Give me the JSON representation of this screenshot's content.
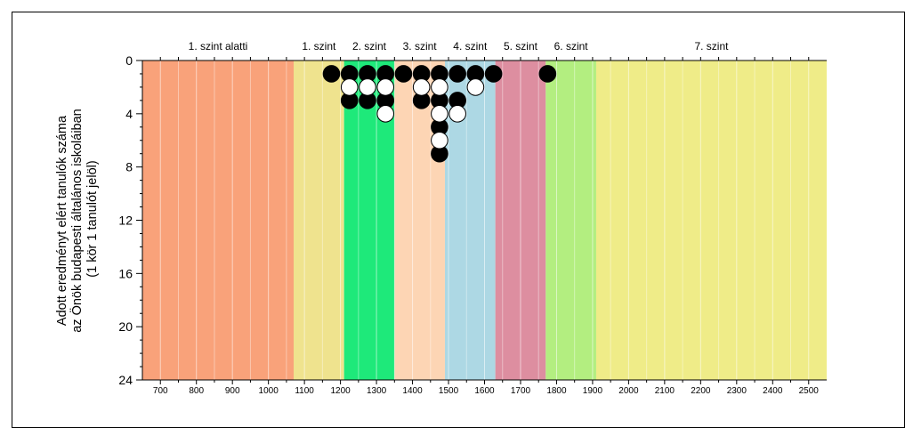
{
  "chart_data": {
    "type": "scatter",
    "title": "",
    "ylabel_lines": [
      "Adott eredményt elért tanulók száma",
      "az Önök budapesti általános iskoláiban",
      "(1 kör 1 tanulót jelöl)"
    ],
    "xlabel": "",
    "xlim": [
      650,
      2550
    ],
    "ylim": [
      0,
      24
    ],
    "y_inverted": true,
    "x_ticks": [
      700,
      800,
      900,
      1000,
      1100,
      1200,
      1300,
      1400,
      1500,
      1600,
      1700,
      1800,
      1900,
      2000,
      2100,
      2200,
      2300,
      2400,
      2500
    ],
    "y_ticks": [
      0,
      4,
      8,
      12,
      16,
      20,
      24
    ],
    "bands": [
      {
        "label": "1. szint alatti",
        "from": 650,
        "to": 1070,
        "color": "#f9a27a"
      },
      {
        "label": "1. szint",
        "from": 1070,
        "to": 1210,
        "color": "#efe38e"
      },
      {
        "label": "2. szint",
        "from": 1210,
        "to": 1350,
        "color": "#1ee97a"
      },
      {
        "label": "3. szint",
        "from": 1350,
        "to": 1490,
        "color": "#fdd5b4"
      },
      {
        "label": "4. szint",
        "from": 1490,
        "to": 1630,
        "color": "#add8e4"
      },
      {
        "label": "5. szint",
        "from": 1630,
        "to": 1770,
        "color": "#dd8ea0"
      },
      {
        "label": "6. szint",
        "from": 1770,
        "to": 1910,
        "color": "#b3ee80"
      },
      {
        "label": "7. szint",
        "from": 1910,
        "to": 2550,
        "color": "#efec88"
      }
    ],
    "series": [
      {
        "fill": "#000000",
        "points": [
          {
            "x": 1175,
            "y": 1
          },
          {
            "x": 1225,
            "y": 1
          },
          {
            "x": 1275,
            "y": 1
          },
          {
            "x": 1325,
            "y": 1
          },
          {
            "x": 1375,
            "y": 1
          },
          {
            "x": 1425,
            "y": 1
          },
          {
            "x": 1475,
            "y": 1
          },
          {
            "x": 1525,
            "y": 1
          },
          {
            "x": 1575,
            "y": 1
          },
          {
            "x": 1625,
            "y": 1
          },
          {
            "x": 1775,
            "y": 1
          },
          {
            "x": 1225,
            "y": 3
          },
          {
            "x": 1275,
            "y": 3
          },
          {
            "x": 1325,
            "y": 3
          },
          {
            "x": 1425,
            "y": 3
          },
          {
            "x": 1475,
            "y": 3
          },
          {
            "x": 1525,
            "y": 3
          },
          {
            "x": 1475,
            "y": 5
          },
          {
            "x": 1475,
            "y": 7
          }
        ]
      },
      {
        "fill": "#ffffff",
        "points": [
          {
            "x": 1225,
            "y": 2
          },
          {
            "x": 1275,
            "y": 2
          },
          {
            "x": 1325,
            "y": 2
          },
          {
            "x": 1425,
            "y": 2
          },
          {
            "x": 1475,
            "y": 2
          },
          {
            "x": 1575,
            "y": 2
          },
          {
            "x": 1325,
            "y": 4
          },
          {
            "x": 1475,
            "y": 4
          },
          {
            "x": 1525,
            "y": 4
          },
          {
            "x": 1475,
            "y": 6
          }
        ]
      }
    ]
  }
}
